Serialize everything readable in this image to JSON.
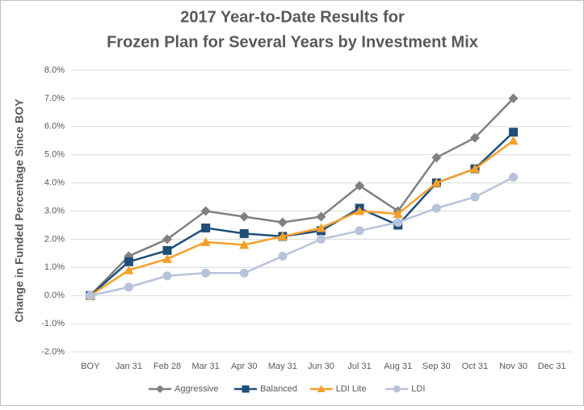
{
  "chart_data": {
    "type": "line",
    "title": [
      "2017 Year-to-Date Results for",
      "Frozen Plan for Several Years by Investment Mix"
    ],
    "y_label": "Change in Funded Percentage Since BOY",
    "categories": [
      "BOY",
      "Jan 31",
      "Feb 28",
      "Mar 31",
      "Apr 30",
      "May 31",
      "Jun 30",
      "Jul 31",
      "Aug 31",
      "Sep 30",
      "Oct 31",
      "Nov 30",
      "Dec 31"
    ],
    "series": [
      {
        "name": "Aggressive",
        "color": "#808080",
        "marker": "diamond",
        "values": [
          0,
          1.4,
          2.0,
          3.0,
          2.8,
          2.6,
          2.8,
          3.9,
          3.0,
          4.9,
          5.6,
          7.0,
          null
        ]
      },
      {
        "name": "Balanced",
        "color": "#1f4e79",
        "marker": "square",
        "values": [
          0,
          1.2,
          1.6,
          2.4,
          2.2,
          2.1,
          2.3,
          3.1,
          2.5,
          4.0,
          4.5,
          5.8,
          null
        ]
      },
      {
        "name": "LDI Lite",
        "color": "#f5a02a",
        "marker": "triangle",
        "values": [
          0,
          0.9,
          1.3,
          1.9,
          1.8,
          2.1,
          2.4,
          3.0,
          2.9,
          4.0,
          4.5,
          5.5,
          null
        ]
      },
      {
        "name": "LDI",
        "color": "#b7c3da",
        "marker": "circle",
        "values": [
          0,
          0.3,
          0.7,
          0.8,
          0.8,
          1.4,
          2.0,
          2.3,
          2.6,
          3.1,
          3.5,
          4.2,
          null
        ]
      }
    ],
    "ylim": [
      -2,
      8
    ],
    "yticks": [
      {
        "value": -2,
        "label": "-2.0%"
      },
      {
        "value": -1,
        "label": "-1.0%"
      },
      {
        "value": 0,
        "label": "0.0%"
      },
      {
        "value": 1,
        "label": "1.0%"
      },
      {
        "value": 2,
        "label": "2.0%"
      },
      {
        "value": 3,
        "label": "3.0%"
      },
      {
        "value": 4,
        "label": "4.0%"
      },
      {
        "value": 5,
        "label": "5.0%"
      },
      {
        "value": 6,
        "label": "6.0%"
      },
      {
        "value": 7,
        "label": "7.0%"
      },
      {
        "value": 8,
        "label": "8.0%"
      }
    ],
    "grid": true,
    "legend": "bottom"
  }
}
